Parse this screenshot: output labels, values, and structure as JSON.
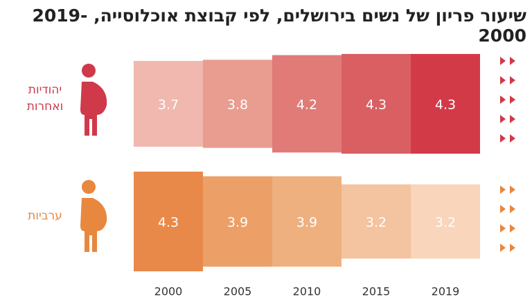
{
  "chart_data": {
    "type": "bar",
    "title": "שיעור פריון של נשים בירושלים, לפי קבוצת אוכלוסייה, 2019-2000",
    "categories": [
      "2000",
      "2005",
      "2010",
      "2015",
      "2019"
    ],
    "series": [
      {
        "name": "יהודיות ואחרות",
        "color": "#d0394a",
        "values": [
          3.7,
          3.8,
          4.2,
          4.3,
          4.3
        ],
        "colors": [
          "#f0b8ae",
          "#e99c90",
          "#e07b78",
          "#d95f62",
          "#d33a48"
        ]
      },
      {
        "name": "ערביות",
        "color": "#e8873e",
        "values": [
          4.3,
          3.9,
          3.9,
          3.2,
          3.2
        ],
        "colors": [
          "#e8894a",
          "#eca067",
          "#efb07f",
          "#f4c39f",
          "#f8d5bb"
        ]
      }
    ]
  }
}
